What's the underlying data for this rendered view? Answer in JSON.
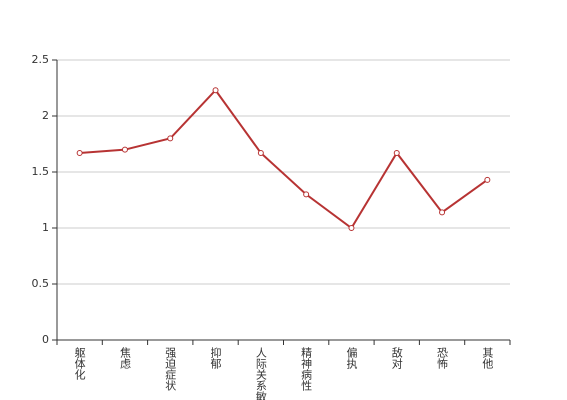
{
  "chart_data": {
    "type": "line",
    "categories": [
      "躯体化",
      "焦虑",
      "强迫症状",
      "抑郁",
      "人际关系敏感",
      "精神病性",
      "偏执",
      "敌对",
      "恐怖",
      "其他"
    ],
    "values": [
      1.67,
      1.7,
      1.8,
      2.23,
      1.67,
      1.3,
      1.0,
      1.67,
      1.14,
      1.43
    ],
    "color": "#b73333",
    "ylim": [
      0,
      2.5
    ],
    "yticks": [
      0,
      {
        "value": 0.5,
        "label": "0.5"
      },
      1,
      {
        "value": 1.5,
        "label": "1.5"
      },
      2,
      {
        "value": 2.5,
        "label": "2.5"
      }
    ],
    "grid": true
  }
}
